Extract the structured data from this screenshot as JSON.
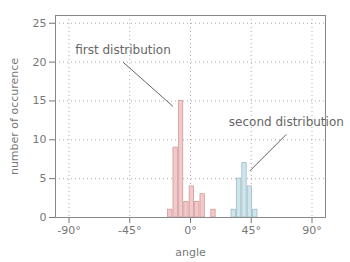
{
  "chart_data": {
    "type": "histogram",
    "xlabel": "angle",
    "ylabel": "number of occurence",
    "xlim": [
      -100,
      100
    ],
    "ylim": [
      0,
      26
    ],
    "xticks": [
      {
        "value": -90,
        "label": "-90°"
      },
      {
        "value": -45,
        "label": "-45°"
      },
      {
        "value": 0,
        "label": "0°"
      },
      {
        "value": 45,
        "label": "45°"
      },
      {
        "value": 90,
        "label": "90°"
      }
    ],
    "yticks": [
      0,
      5,
      10,
      15,
      20,
      25
    ],
    "grid": true,
    "series": [
      {
        "name": "first distribution",
        "color": "#f7c6c6",
        "bins": [
          -17,
          -13,
          -9,
          -5,
          -1,
          3,
          7,
          11,
          15,
          19
        ],
        "values": [
          1,
          9,
          15,
          2,
          4,
          2,
          3,
          0,
          1
        ]
      },
      {
        "name": "second distribution",
        "color": "#cce6f0",
        "bins": [
          30,
          34,
          38,
          42,
          46,
          50
        ],
        "values": [
          1,
          5,
          7,
          4,
          1
        ]
      }
    ],
    "annotations": [
      {
        "text": "first distribution",
        "xy": [
          -13,
          14.3
        ],
        "xytext": [
          -50,
          20
        ]
      },
      {
        "text": "second distribution",
        "xy": [
          44,
          6
        ],
        "xytext": [
          71,
          10.7
        ]
      }
    ]
  }
}
